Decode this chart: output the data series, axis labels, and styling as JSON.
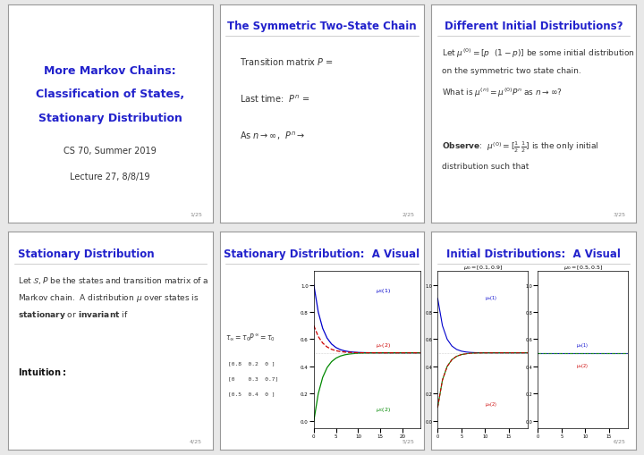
{
  "bg_color": "#e8e8e8",
  "slide_bg": "#ffffff",
  "title_color": "#2222cc",
  "text_color": "#333333",
  "footer_color": "#888888",
  "slides": [
    {
      "id": 0,
      "footer": "1/25"
    },
    {
      "id": 1,
      "title": "The Symmetric Two-State Chain",
      "footer": "2/25"
    },
    {
      "id": 2,
      "title": "Different Initial Distributions?",
      "footer": "3/25"
    },
    {
      "id": 3,
      "title": "Stationary Distribution",
      "footer": "4/25"
    },
    {
      "id": 4,
      "title": "Stationary Distribution:  A Visual",
      "footer": "5/25"
    },
    {
      "id": 5,
      "title": "Initial Distributions:  A Visual",
      "footer": "6/25"
    }
  ]
}
